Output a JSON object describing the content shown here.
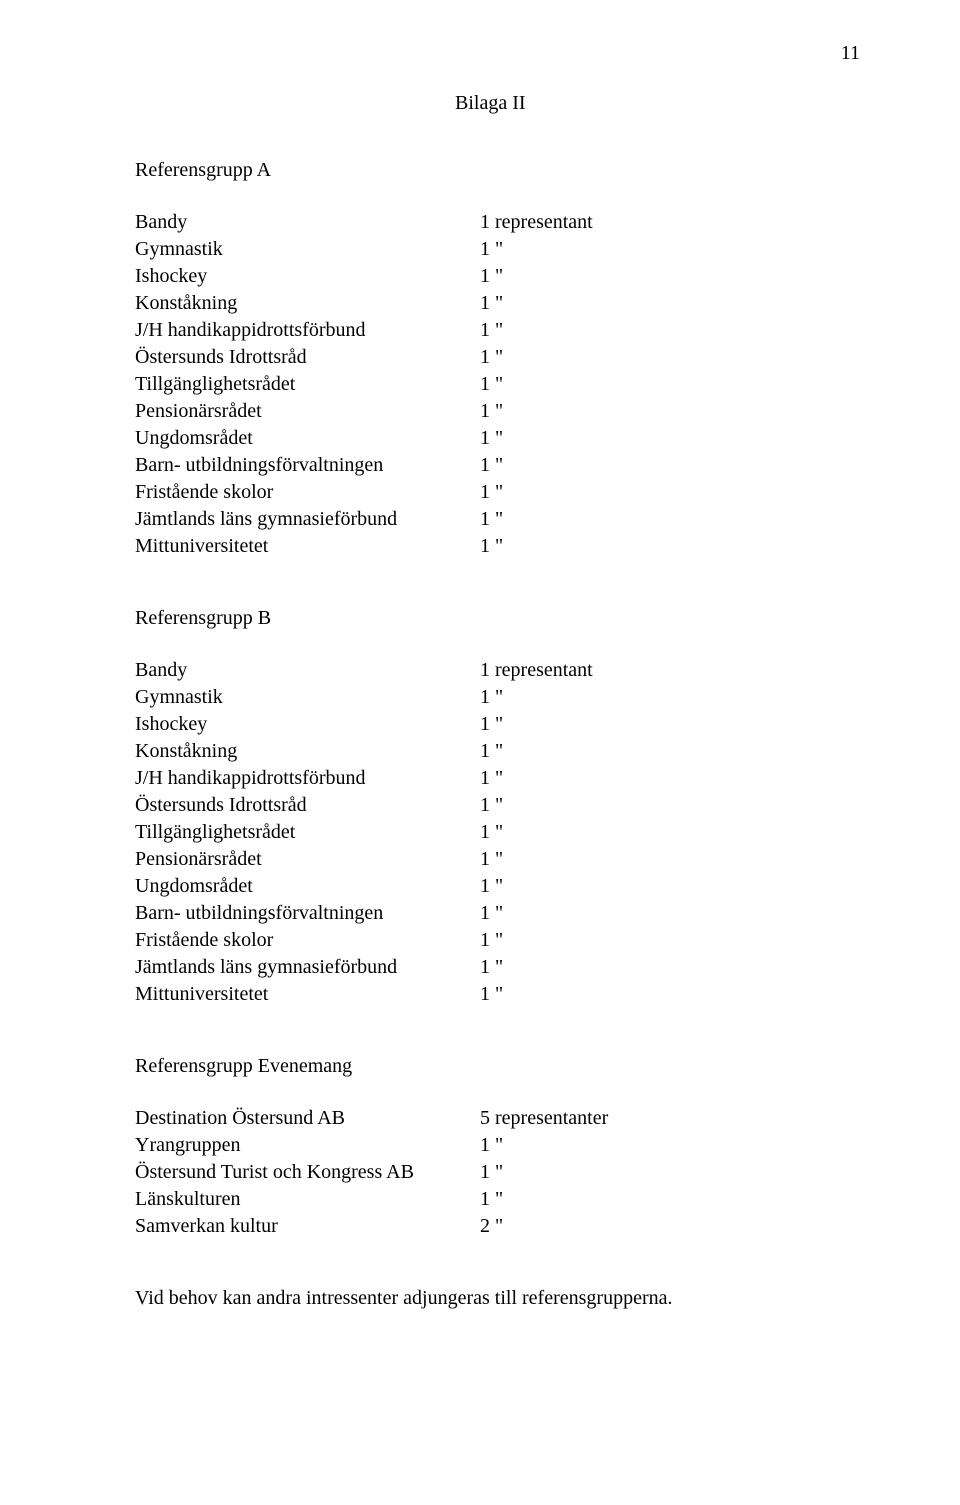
{
  "page_number": "11",
  "top_title": "Bilaga II",
  "groupA": {
    "title": "Referensgrupp A",
    "rows": [
      {
        "label": "Bandy",
        "value": "1 representant"
      },
      {
        "label": "Gymnastik",
        "value": "1 \""
      },
      {
        "label": "Ishockey",
        "value": "1 \""
      },
      {
        "label": "Konståkning",
        "value": "1 \""
      },
      {
        "label": "J/H handikappidrottsförbund",
        "value": "1 \""
      },
      {
        "label": "Östersunds Idrottsråd",
        "value": "1 \""
      },
      {
        "label": "Tillgänglighetsrådet",
        "value": "1 \""
      },
      {
        "label": "Pensionärsrådet",
        "value": "1 \""
      },
      {
        "label": "Ungdomsrådet",
        "value": "1 \""
      },
      {
        "label": "Barn- utbildningsförvaltningen",
        "value": "1 \""
      },
      {
        "label": "Fristående skolor",
        "value": "1 \""
      },
      {
        "label": "Jämtlands läns gymnasieförbund",
        "value": "1 \""
      },
      {
        "label": "Mittuniversitetet",
        "value": "1 \""
      }
    ]
  },
  "groupB": {
    "title": "Referensgrupp B",
    "rows": [
      {
        "label": "Bandy",
        "value": "1 representant"
      },
      {
        "label": "Gymnastik",
        "value": "1 \""
      },
      {
        "label": "Ishockey",
        "value": "1 \""
      },
      {
        "label": "Konståkning",
        "value": "1 \""
      },
      {
        "label": "J/H handikappidrottsförbund",
        "value": "1 \""
      },
      {
        "label": "Östersunds Idrottsråd",
        "value": "1 \""
      },
      {
        "label": "Tillgänglighetsrådet",
        "value": "1 \""
      },
      {
        "label": "Pensionärsrådet",
        "value": "1 \""
      },
      {
        "label": "Ungdomsrådet",
        "value": "1 \""
      },
      {
        "label": "Barn- utbildningsförvaltningen",
        "value": "1 \""
      },
      {
        "label": "Fristående skolor",
        "value": "1 \""
      },
      {
        "label": "Jämtlands läns gymnasieförbund",
        "value": "1 \""
      },
      {
        "label": "Mittuniversitetet",
        "value": "1 \""
      }
    ]
  },
  "groupEv": {
    "title": "Referensgrupp Evenemang",
    "rows": [
      {
        "label": "Destination Östersund AB",
        "value": "5 representanter"
      },
      {
        "label": "Yrangruppen",
        "value": "1 \""
      },
      {
        "label": "Östersund Turist och Kongress AB",
        "value": "1  \""
      },
      {
        "label": "Länskulturen",
        "value": "1 \""
      },
      {
        "label": "Samverkan kultur",
        "value": "2 \""
      }
    ]
  },
  "footnote": "Vid behov kan andra intressenter adjungeras till referensgrupperna."
}
